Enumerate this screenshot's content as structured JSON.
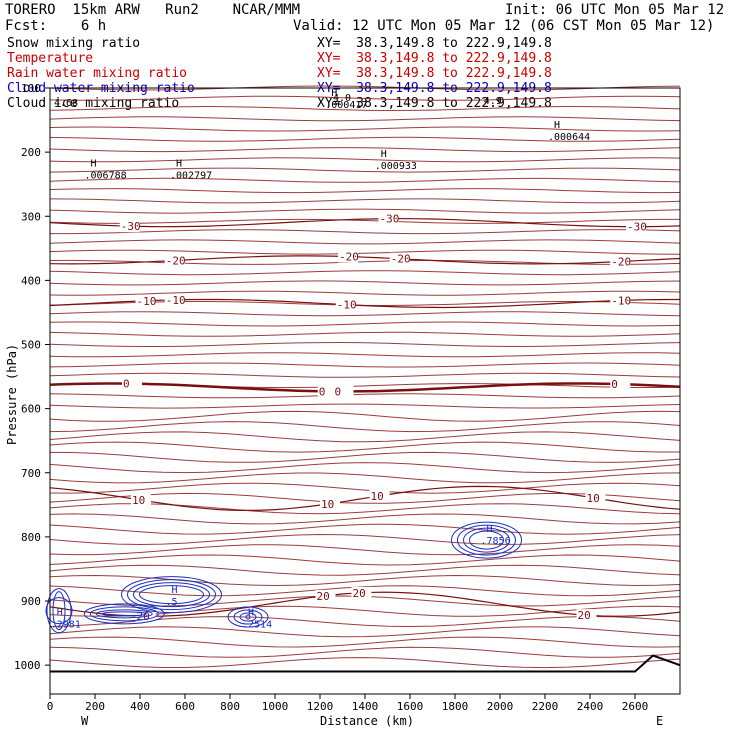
{
  "header": {
    "run_name": "TORERO  15km ARW   Run2    NCAR/MMM",
    "init": "Init: 06 UTC Mon 05 Mar 12",
    "fcst": "Fcst:    6 h",
    "valid": "Valid: 12 UTC Mon 05 Mar 12 (06 CST Mon 05 Mar 12)"
  },
  "fields": [
    {
      "name": "Snow mixing ratio",
      "color": "#000000",
      "xy": "XY=  38.3,149.8 to 222.9,149.8"
    },
    {
      "name": "Temperature",
      "color": "#cc0000",
      "xy": "XY=  38.3,149.8 to 222.9,149.8"
    },
    {
      "name": "Rain water mixing ratio",
      "color": "#cc0000",
      "xy": "XY=  38.3,149.8 to 222.9,149.8"
    },
    {
      "name": "Cloud water mixing ratio",
      "color": "#0000cc",
      "xy": "XY=  38.3,149.8 to 222.9,149.8"
    },
    {
      "name": "Cloud ice mixing ratio",
      "color": "#000000",
      "xy": "XY=  38.3,149.8 to 222.9,149.8"
    }
  ],
  "chart_data": {
    "type": "contour",
    "xlabel": "Distance (km)",
    "ylabel": "Pressure (hPa)",
    "xlim": [
      0,
      2800
    ],
    "ylim": [
      1045,
      100
    ],
    "x_ticks": [
      0,
      200,
      400,
      600,
      800,
      1000,
      1200,
      1400,
      1600,
      1800,
      2000,
      2200,
      2400,
      2600
    ],
    "y_ticks": [
      100,
      200,
      300,
      400,
      500,
      600,
      700,
      800,
      900,
      1000
    ],
    "x_endpoint_labels": {
      "left": "W",
      "right": "E"
    },
    "temperature_contours": [
      {
        "label": "-30",
        "pressure": 310,
        "label_x": [
          350,
          1500,
          2600
        ]
      },
      {
        "label": "-20",
        "pressure": 368,
        "label_x": [
          550,
          1320,
          1550,
          2530
        ]
      },
      {
        "label": "-10",
        "pressure": 436,
        "label_x": [
          420,
          550,
          1310,
          2530
        ]
      },
      {
        "label": "0",
        "pressure": 567,
        "label_x": [
          360,
          1230,
          1300,
          2530
        ]
      },
      {
        "label": "10",
        "pressure": 740,
        "label_x": [
          400,
          1240,
          1460,
          2420
        ]
      },
      {
        "label": "20",
        "pressure": 905,
        "label_x": [
          420,
          1220,
          1380,
          2380
        ]
      }
    ],
    "maxima_labels": [
      {
        "field": "snow",
        "label": "H",
        "value": ".006788",
        "x": 180,
        "p": 235
      },
      {
        "field": "snow",
        "label": "H",
        "value": ".002797",
        "x": 560,
        "p": 235
      },
      {
        "field": "snow",
        "label": "H",
        "value": ".000933",
        "x": 1470,
        "p": 220
      },
      {
        "field": "snow",
        "label": "H",
        "value": ".000644",
        "x": 2240,
        "p": 175
      },
      {
        "field": "snow",
        "label": "H",
        "value": ".000417",
        "x": 1250,
        "p": 125
      },
      {
        "field": "cloud_water",
        "label": "H",
        "value": ".7856",
        "x": 1940,
        "p": 805
      },
      {
        "field": "cloud_water",
        "label": "H",
        "value": ".2981",
        "x": 30,
        "p": 935
      },
      {
        "field": "cloud_water",
        "label": "H",
        "value": ".5",
        "x": 540,
        "p": 900
      },
      {
        "field": "cloud_water",
        "label": "H",
        "value": ".2514",
        "x": 880,
        "p": 935
      }
    ],
    "edge_labels": [
      {
        "text": "4.68",
        "x": 0,
        "p": 128
      },
      {
        "text": "4.0",
        "x": 1240,
        "p": 120
      },
      {
        "text": "4.9",
        "x": 1910,
        "p": 125
      }
    ]
  }
}
